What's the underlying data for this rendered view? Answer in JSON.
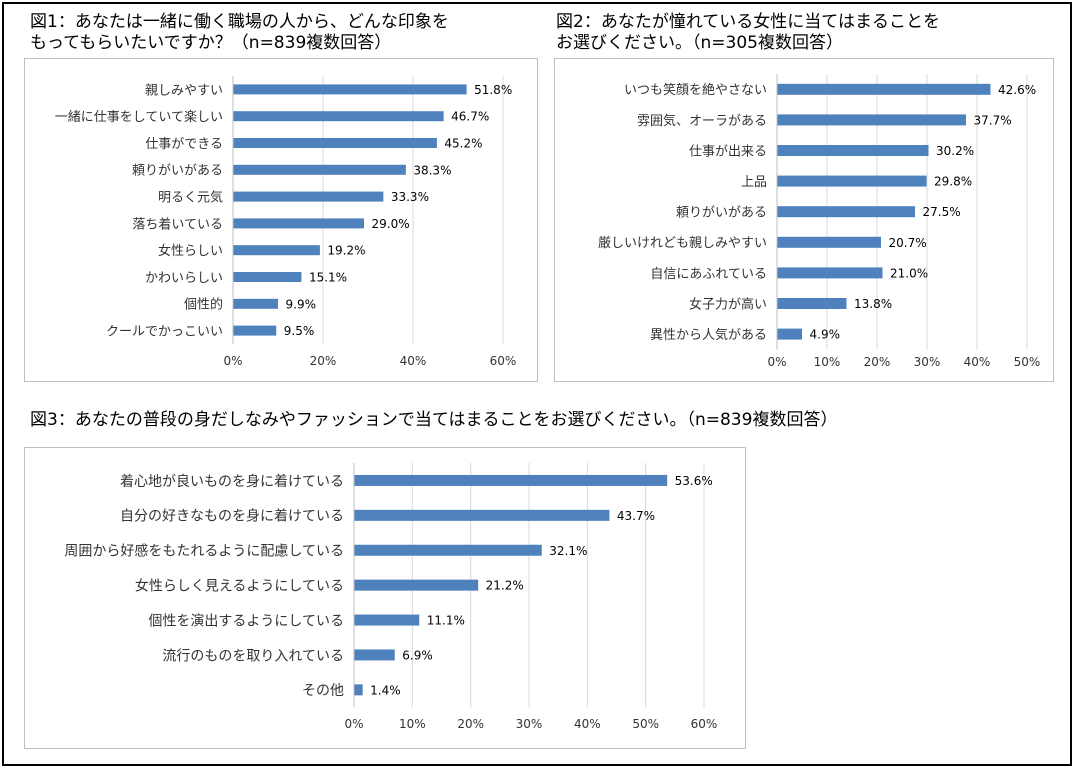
{
  "titles": {
    "fig1": "図1：あなたは一緒に働く職場の人から、どんな印象を\nもってもらいたいですか？（n=839複数回答）",
    "fig2": "図2：あなたが憧れている女性に当てはまることを\nお選びください。（n=305複数回答）",
    "fig3": "図3：あなたの普段の身だしなみやファッションで当てはまることをお選びください。（n=839複数回答）"
  },
  "chart_data": [
    {
      "type": "bar",
      "orientation": "horizontal",
      "categories": [
        "親しみやすい",
        "一緒に仕事をしていて楽しい",
        "仕事ができる",
        "頼りがいがある",
        "明るく元気",
        "落ち着いている",
        "女性らしい",
        "かわいらしい",
        "個性的",
        "クールでかっこいい"
      ],
      "values": [
        51.8,
        46.7,
        45.2,
        38.3,
        33.3,
        29.0,
        19.2,
        15.1,
        9.9,
        9.5
      ],
      "labels": [
        "51.8%",
        "46.7%",
        "45.2%",
        "38.3%",
        "33.3%",
        "29.0%",
        "19.2%",
        "15.1%",
        "9.9%",
        "9.5%"
      ],
      "xlim": [
        0,
        60
      ],
      "ticks": [
        0,
        20,
        40,
        60
      ],
      "tick_labels": [
        "0%",
        "20%",
        "40%",
        "60%"
      ],
      "grid": true,
      "bar_color": "#4f81bd"
    },
    {
      "type": "bar",
      "orientation": "horizontal",
      "categories": [
        "いつも笑顔を絶やさない",
        "雰囲気、オーラがある",
        "仕事が出来る",
        "上品",
        "頼りがいがある",
        "厳しいけれども親しみやすい",
        "自信にあふれている",
        "女子力が高い",
        "異性から人気がある"
      ],
      "values": [
        42.6,
        37.7,
        30.2,
        29.8,
        27.5,
        20.7,
        21.0,
        13.8,
        4.9
      ],
      "labels": [
        "42.6%",
        "37.7%",
        "30.2%",
        "29.8%",
        "27.5%",
        "20.7%",
        "21.0%",
        "13.8%",
        "4.9%"
      ],
      "xlim": [
        0,
        50
      ],
      "ticks": [
        0,
        10,
        20,
        30,
        40,
        50
      ],
      "tick_labels": [
        "0%",
        "10%",
        "20%",
        "30%",
        "40%",
        "50%"
      ],
      "grid": true,
      "bar_color": "#4f81bd"
    },
    {
      "type": "bar",
      "orientation": "horizontal",
      "categories": [
        "着心地が良いものを身に着けている",
        "自分の好きなものを身に着けている",
        "周囲から好感をもたれるように配慮している",
        "女性らしく見えるようにしている",
        "個性を演出するようにしている",
        "流行のものを取り入れている",
        "その他"
      ],
      "values": [
        53.6,
        43.7,
        32.1,
        21.2,
        11.1,
        6.9,
        1.4
      ],
      "labels": [
        "53.6%",
        "43.7%",
        "32.1%",
        "21.2%",
        "11.1%",
        "6.9%",
        "1.4%"
      ],
      "xlim": [
        0,
        60
      ],
      "ticks": [
        0,
        10,
        20,
        30,
        40,
        50,
        60
      ],
      "tick_labels": [
        "0%",
        "10%",
        "20%",
        "30%",
        "40%",
        "50%",
        "60%"
      ],
      "grid": true,
      "bar_color": "#4f81bd"
    }
  ]
}
